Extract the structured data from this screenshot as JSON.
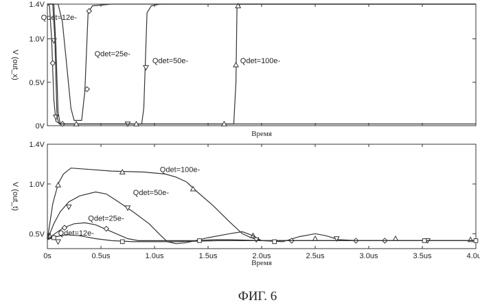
{
  "chart_data": [
    {
      "type": "line",
      "ylabel": "V (out_x)",
      "xlabel": "Время",
      "xlim": [
        0,
        4.0
      ],
      "ylim": [
        0,
        1.4
      ],
      "yticks": [
        {
          "v": 0,
          "label": "0V"
        },
        {
          "v": 0.5,
          "label": "0.5V"
        },
        {
          "v": 1.0,
          "label": "1.0V"
        },
        {
          "v": 1.4,
          "label": "1.4V"
        }
      ],
      "grid": false,
      "series": [
        {
          "name": "Qdet=12e-",
          "marker": "diamond",
          "label_at": [
            -0.06,
            1.22
          ],
          "points": [
            [
              0,
              1.4
            ],
            [
              0.02,
              1.38
            ],
            [
              0.04,
              1.0
            ],
            [
              0.06,
              0.3
            ],
            [
              0.08,
              0.05
            ],
            [
              0.12,
              0.02
            ],
            [
              0.2,
              0.02
            ],
            [
              0.3,
              0.02
            ],
            [
              4.0,
              0.02
            ]
          ],
          "markers": [
            [
              0.05,
              0.72
            ],
            [
              0.14,
              0.02
            ]
          ]
        },
        {
          "name": "Qdet=25e-",
          "marker": "diamond",
          "label_at": [
            0.44,
            0.8
          ],
          "points": [
            [
              0,
              1.4
            ],
            [
              0.1,
              1.4
            ],
            [
              0.14,
              1.2
            ],
            [
              0.18,
              0.7
            ],
            [
              0.22,
              0.2
            ],
            [
              0.25,
              0.06
            ],
            [
              0.32,
              0.06
            ],
            [
              0.35,
              0.4
            ],
            [
              0.38,
              1.3
            ],
            [
              0.42,
              1.38
            ],
            [
              0.6,
              1.4
            ],
            [
              4.0,
              1.4
            ]
          ],
          "markers": [
            [
              0.37,
              0.42
            ],
            [
              0.39,
              1.32
            ]
          ]
        },
        {
          "name": "Qdet=50e-",
          "marker": "triangle-down",
          "label_at": [
            0.98,
            0.72
          ],
          "points": [
            [
              0,
              1.4
            ],
            [
              0.06,
              1.4
            ],
            [
              0.08,
              0.9
            ],
            [
              0.1,
              0.15
            ],
            [
              0.12,
              0.02
            ],
            [
              0.88,
              0.02
            ],
            [
              0.9,
              0.2
            ],
            [
              0.93,
              1.3
            ],
            [
              0.97,
              1.38
            ],
            [
              1.05,
              1.4
            ],
            [
              4.0,
              1.4
            ]
          ],
          "markers": [
            [
              0.06,
              0.98
            ],
            [
              0.08,
              0.1
            ],
            [
              0.92,
              0.67
            ],
            [
              0.75,
              0.02
            ]
          ]
        },
        {
          "name": "Qdet=100e-",
          "marker": "triangle-up",
          "label_at": [
            1.8,
            0.72
          ],
          "points": [
            [
              0,
              1.4
            ],
            [
              0.05,
              1.4
            ],
            [
              0.07,
              1.0
            ],
            [
              0.09,
              0.1
            ],
            [
              0.11,
              0.02
            ],
            [
              1.74,
              0.02
            ],
            [
              1.76,
              0.5
            ],
            [
              1.77,
              1.35
            ],
            [
              1.8,
              1.4
            ],
            [
              4.0,
              1.4
            ]
          ],
          "markers": [
            [
              1.76,
              0.7
            ],
            [
              1.78,
              1.38
            ],
            [
              0.27,
              0.02
            ],
            [
              0.83,
              0.02
            ],
            [
              1.65,
              0.02
            ]
          ]
        }
      ]
    },
    {
      "type": "line",
      "ylabel": "V (out_t)",
      "xlabel": "Время",
      "xlim": [
        0,
        4.0
      ],
      "ylim": [
        0.35,
        1.4
      ],
      "yticks": [
        {
          "v": 0.5,
          "label": "0.5V"
        },
        {
          "v": 1.0,
          "label": "1.0V"
        },
        {
          "v": 1.4,
          "label": "1.4V"
        }
      ],
      "xticks": [
        {
          "v": 0,
          "label": "0s"
        },
        {
          "v": 0.5,
          "label": "0.5us"
        },
        {
          "v": 1.0,
          "label": "1.0us"
        },
        {
          "v": 1.5,
          "label": "1.5us"
        },
        {
          "v": 2.0,
          "label": "2.0us"
        },
        {
          "v": 2.5,
          "label": "2.5us"
        },
        {
          "v": 3.0,
          "label": "3.0us"
        },
        {
          "v": 3.5,
          "label": "3.5us"
        },
        {
          "v": 4.0,
          "label": "4.0us"
        }
      ],
      "grid": false,
      "series": [
        {
          "name": "Qdet=100e-",
          "marker": "triangle-up",
          "label_at": [
            1.05,
            1.12
          ],
          "points": [
            [
              0,
              0.44
            ],
            [
              0.05,
              0.8
            ],
            [
              0.1,
              1.0
            ],
            [
              0.15,
              1.1
            ],
            [
              0.22,
              1.16
            ],
            [
              0.35,
              1.15
            ],
            [
              0.6,
              1.13
            ],
            [
              0.9,
              1.12
            ],
            [
              1.1,
              1.1
            ],
            [
              1.2,
              1.07
            ],
            [
              1.3,
              1.02
            ],
            [
              1.4,
              0.92
            ],
            [
              1.55,
              0.78
            ],
            [
              1.7,
              0.62
            ],
            [
              1.82,
              0.5
            ],
            [
              1.9,
              0.46
            ],
            [
              2.0,
              0.43
            ],
            [
              2.2,
              0.43
            ],
            [
              4.0,
              0.43
            ]
          ],
          "markers": [
            [
              0.02,
              0.48
            ],
            [
              0.1,
              0.99
            ],
            [
              0.7,
              1.12
            ],
            [
              1.36,
              0.95
            ],
            [
              1.92,
              0.48
            ],
            [
              2.5,
              0.45
            ],
            [
              3.25,
              0.45
            ],
            [
              3.95,
              0.44
            ]
          ]
        },
        {
          "name": "Qdet=50e-",
          "marker": "triangle-down",
          "label_at": [
            0.8,
            0.89
          ],
          "points": [
            [
              0,
              0.44
            ],
            [
              0.06,
              0.6
            ],
            [
              0.12,
              0.72
            ],
            [
              0.2,
              0.82
            ],
            [
              0.3,
              0.88
            ],
            [
              0.45,
              0.92
            ],
            [
              0.55,
              0.9
            ],
            [
              0.65,
              0.83
            ],
            [
              0.8,
              0.72
            ],
            [
              0.95,
              0.6
            ],
            [
              1.05,
              0.49
            ],
            [
              1.12,
              0.42
            ],
            [
              1.2,
              0.4
            ],
            [
              1.3,
              0.41
            ],
            [
              1.5,
              0.46
            ],
            [
              1.7,
              0.5
            ],
            [
              1.82,
              0.52
            ],
            [
              1.92,
              0.48
            ],
            [
              2.0,
              0.43
            ],
            [
              2.2,
              0.42
            ],
            [
              2.35,
              0.47
            ],
            [
              2.5,
              0.5
            ],
            [
              2.6,
              0.48
            ],
            [
              2.72,
              0.44
            ],
            [
              2.9,
              0.43
            ],
            [
              4.0,
              0.43
            ]
          ],
          "markers": [
            [
              0.2,
              0.77
            ],
            [
              0.75,
              0.76
            ],
            [
              0.1,
              0.42
            ],
            [
              1.95,
              0.44
            ],
            [
              2.7,
              0.45
            ],
            [
              3.55,
              0.43
            ]
          ]
        },
        {
          "name": "Qdet=25e-",
          "marker": "diamond",
          "label_at": [
            0.38,
            0.63
          ],
          "points": [
            [
              0,
              0.44
            ],
            [
              0.07,
              0.5
            ],
            [
              0.15,
              0.56
            ],
            [
              0.25,
              0.6
            ],
            [
              0.35,
              0.61
            ],
            [
              0.45,
              0.59
            ],
            [
              0.6,
              0.52
            ],
            [
              0.75,
              0.45
            ],
            [
              0.85,
              0.43
            ],
            [
              1.0,
              0.43
            ],
            [
              1.2,
              0.43
            ],
            [
              1.4,
              0.43
            ],
            [
              1.55,
              0.44
            ],
            [
              1.7,
              0.44
            ],
            [
              2.0,
              0.43
            ],
            [
              4.0,
              0.43
            ]
          ],
          "markers": [
            [
              0.16,
              0.56
            ],
            [
              0.55,
              0.55
            ],
            [
              2.28,
              0.43
            ],
            [
              2.88,
              0.43
            ],
            [
              3.15,
              0.43
            ]
          ]
        },
        {
          "name": "Qdet=12e-",
          "marker": "square",
          "label_at": [
            0.1,
            0.48
          ],
          "points": [
            [
              0,
              0.44
            ],
            [
              0.08,
              0.47
            ],
            [
              0.18,
              0.49
            ],
            [
              0.3,
              0.48
            ],
            [
              0.45,
              0.45
            ],
            [
              0.6,
              0.43
            ],
            [
              0.8,
              0.42
            ],
            [
              1.2,
              0.42
            ],
            [
              1.6,
              0.43
            ],
            [
              2.2,
              0.43
            ],
            [
              4.0,
              0.43
            ]
          ],
          "markers": [
            [
              0.06,
              0.46
            ],
            [
              0.7,
              0.42
            ],
            [
              1.42,
              0.43
            ],
            [
              2.12,
              0.42
            ],
            [
              3.52,
              0.43
            ],
            [
              4.0,
              0.43
            ]
          ]
        }
      ]
    }
  ],
  "caption": "ФИГ. 6"
}
